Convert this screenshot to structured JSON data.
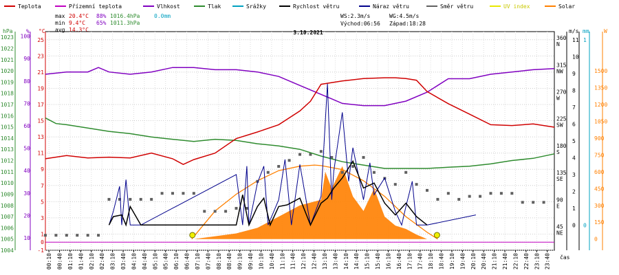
{
  "chart_data": {
    "type": "line",
    "title": "3.10.2021",
    "legend": [
      {
        "label": "Teplota",
        "color": "#d00000"
      },
      {
        "label": "Přízemní teplota",
        "color": "#c000c0"
      },
      {
        "label": "Vlhkost",
        "color": "#8000c0"
      },
      {
        "label": "Tlak",
        "color": "#2e8b2e"
      },
      {
        "label": "Srážky",
        "color": "#00a0c0"
      },
      {
        "label": "Rychlost větru",
        "color": "#000000"
      },
      {
        "label": "Náraz větru",
        "color": "#00008b"
      },
      {
        "label": "Směr větru",
        "color": "#606060"
      },
      {
        "label": "UV index",
        "color": "#e8e800"
      },
      {
        "label": "Solar",
        "color": "#ff8000"
      }
    ],
    "stats": {
      "max_label": "max",
      "max_temp": "20.4°C",
      "max_hum": "88%",
      "max_press": "1016.4hPa",
      "rain": "0.0mm",
      "min_label": "min",
      "min_temp": "9.4°C",
      "min_hum": "65%",
      "min_press": "1011.3hPa",
      "avg_label": "avg",
      "avg_temp": "14.3°C"
    },
    "wind_info": {
      "ws": "WS:2.3m/s",
      "wg": "WG:4.5m/s",
      "sunrise": "Východ:06:56",
      "sunset": "Západ:18:28"
    },
    "axis_units": {
      "press": "hPa",
      "hum": "%",
      "temp": "°C",
      "ms": "m/s",
      "mm": "mm",
      "w": "W",
      "time": "čas"
    },
    "press_ticks": [
      "1004",
      "1005",
      "1006",
      "1007",
      "1008",
      "1009",
      "1010",
      "1011",
      "1012",
      "1013",
      "1014",
      "1015",
      "1016",
      "1017",
      "1018",
      "1019",
      "1020",
      "1021",
      "1022",
      "1023"
    ],
    "hum_ticks": [
      "10",
      "20",
      "30",
      "40",
      "50",
      "60",
      "70",
      "80",
      "90",
      "100"
    ],
    "temp_ticks": [
      "-1",
      "0",
      "1",
      "3",
      "5",
      "7",
      "9",
      "11",
      "13",
      "15",
      "17",
      "19",
      "21",
      "23",
      "25"
    ],
    "dir_ticks": [
      "NE",
      "45",
      "E",
      "90",
      "SE",
      "135",
      "S",
      "180",
      "SW",
      "225",
      "W",
      "270",
      "NW",
      "315",
      "N",
      "360"
    ],
    "ms_ticks": [
      "0",
      "1",
      "2",
      "3",
      "4",
      "5",
      "6",
      "7",
      "8",
      "9",
      "10",
      "11"
    ],
    "mm_ticks": [
      "0",
      "1"
    ],
    "w_ticks": [
      "0",
      "150",
      "300",
      "450",
      "600",
      "750",
      "900",
      "1050",
      "1200",
      "1350",
      "1500"
    ],
    "time_labels": [
      "00:10",
      "00:40",
      "01:10",
      "01:40",
      "02:10",
      "02:40",
      "03:10",
      "03:40",
      "04:10",
      "04:40",
      "05:10",
      "05:40",
      "06:10",
      "06:40",
      "07:10",
      "07:40",
      "08:10",
      "08:40",
      "09:10",
      "09:40",
      "10:10",
      "10:40",
      "11:10",
      "11:40",
      "12:10",
      "12:40",
      "13:10",
      "13:40",
      "14:10",
      "14:40",
      "15:10",
      "15:40",
      "16:10",
      "16:40",
      "17:10",
      "17:40",
      "18:10",
      "18:40",
      "19:10",
      "19:40",
      "20:10",
      "20:40",
      "21:10",
      "21:40",
      "22:10",
      "22:40",
      "23:10",
      "23:40"
    ],
    "series": [
      {
        "name": "Teplota",
        "unit": "°C",
        "x": [
          0,
          1,
          2,
          3,
          4,
          5,
          6,
          6.5,
          7,
          8,
          9,
          10,
          11,
          12,
          12.5,
          13,
          14,
          15,
          16,
          16.5,
          17,
          17.5,
          18,
          19,
          20,
          21,
          22,
          23,
          24
        ],
        "y": [
          10.3,
          10.7,
          10.4,
          10.5,
          10.4,
          11.0,
          10.3,
          9.6,
          10.2,
          11.0,
          12.8,
          13.6,
          14.5,
          16.2,
          17.4,
          19.5,
          19.9,
          20.2,
          20.3,
          20.3,
          20.2,
          20.0,
          18.6,
          17.1,
          15.8,
          14.5,
          14.4,
          14.6,
          14.2
        ]
      },
      {
        "name": "Vlhkost",
        "unit": "%",
        "x": [
          0,
          1,
          2,
          2.5,
          3,
          4,
          5,
          6,
          7,
          8,
          9,
          10,
          11,
          12,
          13,
          13.5,
          14,
          15,
          16,
          17,
          18,
          19,
          20,
          21,
          22,
          23,
          24
        ],
        "y": [
          83,
          84,
          84,
          86,
          84,
          83,
          84,
          86,
          86,
          85,
          85,
          84,
          82,
          78,
          74,
          72,
          70,
          69,
          69,
          71,
          75,
          81,
          81,
          83,
          84,
          85,
          85.5
        ]
      },
      {
        "name": "Tlak",
        "unit": "hPa",
        "x": [
          0,
          0.5,
          1,
          2,
          3,
          4,
          5,
          6,
          7,
          8,
          9,
          10,
          11,
          12,
          13,
          14,
          15,
          16,
          17,
          18,
          19,
          20,
          21,
          22,
          23,
          24
        ],
        "y": [
          1015.8,
          1015.3,
          1015.2,
          1014.9,
          1014.6,
          1014.4,
          1014.1,
          1013.9,
          1013.7,
          1013.9,
          1013.8,
          1013.5,
          1013.3,
          1013.0,
          1012.4,
          1011.9,
          1011.6,
          1011.3,
          1011.3,
          1011.3,
          1011.4,
          1011.5,
          1011.7,
          1012.0,
          1012.2,
          1012.6
        ]
      },
      {
        "name": "Rychlost větru",
        "unit": "m/s",
        "x": [
          3,
          3.2,
          3.6,
          3.8,
          4,
          4.5,
          9,
          9.3,
          9.6,
          10,
          10.3,
          10.6,
          11,
          11.4,
          12,
          12.5,
          13,
          13.3,
          13.6,
          14,
          14.5,
          15,
          15.5,
          16,
          16.5,
          17,
          17.5,
          18
        ],
        "y": [
          0,
          0.5,
          0.6,
          0,
          1.1,
          0,
          0,
          1.8,
          0,
          1.1,
          1.6,
          0,
          1.1,
          1.2,
          1.6,
          0,
          1.3,
          1.6,
          2.2,
          2.8,
          3.8,
          2.2,
          2.5,
          1.3,
          0.6,
          1.3,
          0.5,
          0
        ]
      },
      {
        "name": "Náraz větru",
        "unit": "m/s",
        "x": [
          3,
          3.2,
          3.5,
          3.6,
          3.8,
          4,
          4.5,
          9,
          9.3,
          9.5,
          9.6,
          10,
          10.3,
          10.5,
          11,
          11.3,
          11.6,
          12,
          12.5,
          13,
          13.3,
          13.5,
          13.6,
          14,
          14.3,
          14.5,
          15,
          15.3,
          15.5,
          16,
          16.5,
          16.8,
          17,
          17.3,
          17.5,
          18,
          20.3
        ],
        "y": [
          0,
          0.8,
          2.3,
          0,
          2.7,
          0,
          0,
          3.0,
          0,
          3.5,
          0,
          2.5,
          3.5,
          0,
          1.5,
          3.9,
          0,
          3.6,
          0,
          1.7,
          8.4,
          1.5,
          3.2,
          6.7,
          2.6,
          4.6,
          1.5,
          3.7,
          1.8,
          2.8,
          0.8,
          0,
          1.1,
          2.6,
          0,
          0,
          0.6
        ]
      },
      {
        "name": "Solar",
        "unit": "W",
        "x": [
          7,
          8,
          9,
          10,
          11,
          12,
          13,
          13.2,
          13.5,
          14,
          14.5,
          15,
          15.5,
          16,
          16.5,
          17,
          17.5,
          18
        ],
        "y": [
          0,
          25,
          50,
          100,
          200,
          300,
          350,
          600,
          450,
          650,
          380,
          250,
          450,
          200,
          120,
          90,
          40,
          0
        ]
      }
    ],
    "solar_theoretical": {
      "name": "Solar",
      "x": [
        6.9,
        8,
        9,
        10,
        11,
        12,
        12.7,
        13,
        14,
        15,
        16,
        17,
        18,
        18.5
      ],
      "y": [
        0,
        250,
        400,
        520,
        610,
        650,
        660,
        655,
        620,
        520,
        380,
        200,
        60,
        0
      ]
    },
    "wind_direction": {
      "name": "Směr větru",
      "unit": "°",
      "x": [
        0,
        0.5,
        1,
        1.5,
        2,
        2.5,
        3,
        3.5,
        4,
        4.5,
        5,
        5.5,
        6,
        6.5,
        7,
        7.5,
        8,
        8.5,
        9,
        9.5,
        10,
        10.5,
        11,
        11.5,
        12,
        12.5,
        13,
        13.5,
        14,
        14.5,
        15,
        15.5,
        16,
        16.5,
        17,
        17.5,
        18,
        18.5,
        19,
        19.5,
        20,
        20.5,
        21,
        21.5,
        22,
        22.5,
        23,
        23.5
      ],
      "y": [
        35,
        35,
        35,
        35,
        35,
        35,
        95,
        95,
        95,
        95,
        95,
        105,
        105,
        105,
        105,
        75,
        75,
        75,
        80,
        80,
        125,
        140,
        150,
        160,
        170,
        170,
        175,
        165,
        140,
        150,
        165,
        140,
        130,
        120,
        140,
        120,
        110,
        95,
        105,
        95,
        100,
        100,
        105,
        105,
        105,
        90,
        90,
        90
      ]
    },
    "sun_markers": [
      "06:56",
      "18:28"
    ]
  }
}
